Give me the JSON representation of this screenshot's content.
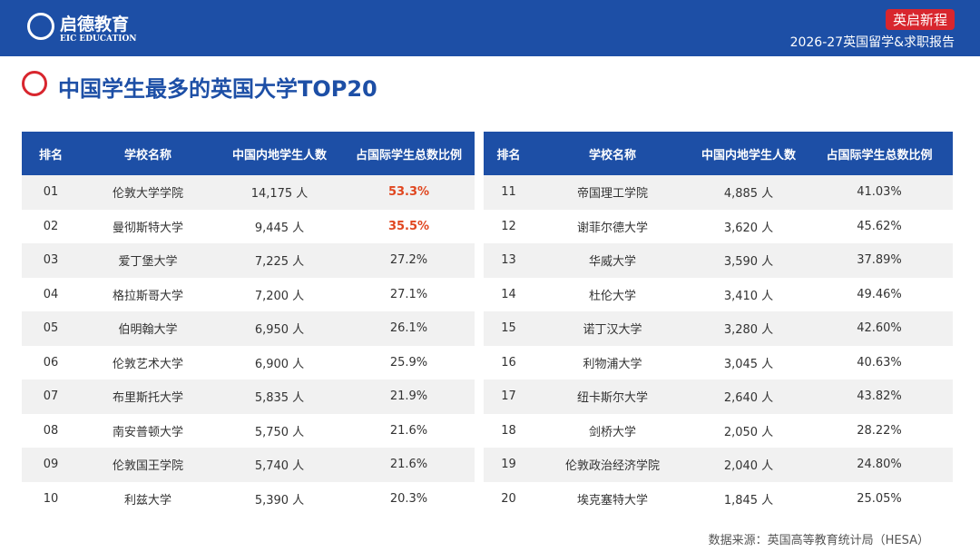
{
  "header": {
    "logo": "启德教育",
    "logo_sub": "EIC EDUCATION",
    "tag": "英启新程",
    "report": "2026-27英国留学&求职报告"
  },
  "title": "中国学生最多的英国大学TOP20",
  "tables": [
    {
      "columns": [
        "排名",
        "学校名称",
        "中国内地学生人数",
        "占国际学生总数比例"
      ],
      "rows": [
        [
          "01",
          "伦敦大学学院",
          "14,175 人",
          "53.3%"
        ],
        [
          "02",
          "曼彻斯特大学",
          "9,445 人",
          "35.5%"
        ],
        [
          "03",
          "爱丁堡大学",
          "7,225 人",
          "27.2%"
        ],
        [
          "04",
          "格拉斯哥大学",
          "7,200 人",
          "27.1%"
        ],
        [
          "05",
          "伯明翰大学",
          "6,950 人",
          "26.1%"
        ],
        [
          "06",
          "伦敦艺术大学",
          "6,900 人",
          "25.9%"
        ],
        [
          "07",
          "布里斯托大学",
          "5,835 人",
          "21.9%"
        ],
        [
          "08",
          "南安普顿大学",
          "5,750 人",
          "21.6%"
        ],
        [
          "09",
          "伦敦国王学院",
          "5,740 人",
          "21.6%"
        ],
        [
          "10",
          "利兹大学",
          "5,390 人",
          "20.3%"
        ]
      ]
    },
    {
      "columns": [
        "排名",
        "学校名称",
        "中国内地学生人数",
        "占国际学生总数比例"
      ],
      "rows": [
        [
          "11",
          "帝国理工学院",
          "4,885 人",
          "41.03%"
        ],
        [
          "12",
          "谢菲尔德大学",
          "3,620 人",
          "45.62%"
        ],
        [
          "13",
          "华威大学",
          "3,590 人",
          "37.89%"
        ],
        [
          "14",
          "杜伦大学",
          "3,410 人",
          "49.46%"
        ],
        [
          "15",
          "诺丁汉大学",
          "3,280 人",
          "42.60%"
        ],
        [
          "16",
          "利物浦大学",
          "3,045 人",
          "40.63%"
        ],
        [
          "17",
          "纽卡斯尔大学",
          "2,640 人",
          "43.82%"
        ],
        [
          "18",
          "剑桥大学",
          "2,050 人",
          "28.22%"
        ],
        [
          "19",
          "伦敦政治经济学院",
          "2,040 人",
          "24.80%"
        ],
        [
          "20",
          "埃克塞特大学",
          "1,845 人",
          "25.05%"
        ]
      ]
    }
  ],
  "source": "数据来源：英国高等教育统计局（HESA）"
}
